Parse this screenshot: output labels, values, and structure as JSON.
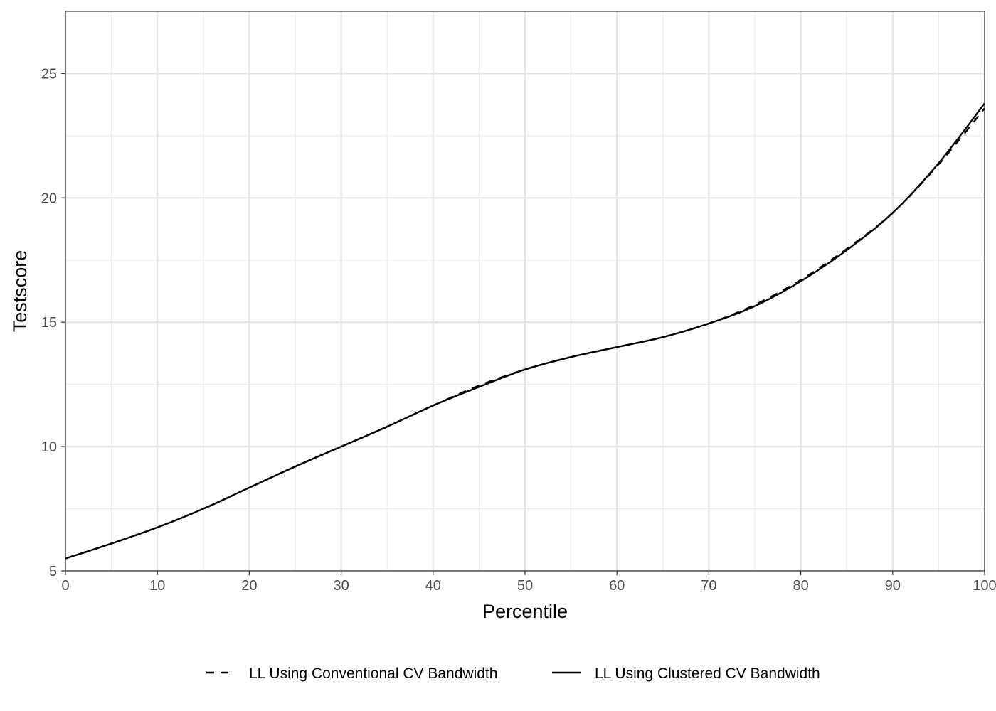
{
  "chart_data": {
    "type": "line",
    "title": "",
    "xlabel": "Percentile",
    "ylabel": "Testscore",
    "xlim": [
      0,
      100
    ],
    "ylim": [
      5,
      27.5
    ],
    "x_ticks": [
      0,
      10,
      20,
      30,
      40,
      50,
      60,
      70,
      80,
      90,
      100
    ],
    "y_ticks": [
      5,
      10,
      15,
      20,
      25
    ],
    "grid": true,
    "legend_position": "bottom",
    "series": [
      {
        "name": "LL Using Conventional CV Bandwidth",
        "style": "dashed",
        "color": "#000000",
        "x": [
          0,
          5,
          10,
          15,
          20,
          25,
          30,
          35,
          40,
          45,
          50,
          55,
          60,
          65,
          70,
          75,
          80,
          85,
          90,
          95,
          100
        ],
        "y": [
          5.5,
          6.1,
          6.75,
          7.5,
          8.35,
          9.2,
          10.0,
          10.8,
          11.65,
          12.45,
          13.1,
          13.6,
          14.0,
          14.4,
          14.95,
          15.7,
          16.7,
          17.95,
          19.4,
          21.35,
          23.6
        ]
      },
      {
        "name": "LL Using Clustered CV Bandwidth",
        "style": "solid",
        "color": "#000000",
        "x": [
          0,
          5,
          10,
          15,
          20,
          25,
          30,
          35,
          40,
          45,
          50,
          55,
          60,
          65,
          70,
          75,
          80,
          85,
          90,
          95,
          100
        ],
        "y": [
          5.5,
          6.1,
          6.75,
          7.5,
          8.35,
          9.2,
          10.0,
          10.8,
          11.65,
          12.4,
          13.1,
          13.6,
          14.0,
          14.4,
          14.95,
          15.65,
          16.65,
          17.9,
          19.4,
          21.4,
          23.8
        ]
      }
    ]
  }
}
